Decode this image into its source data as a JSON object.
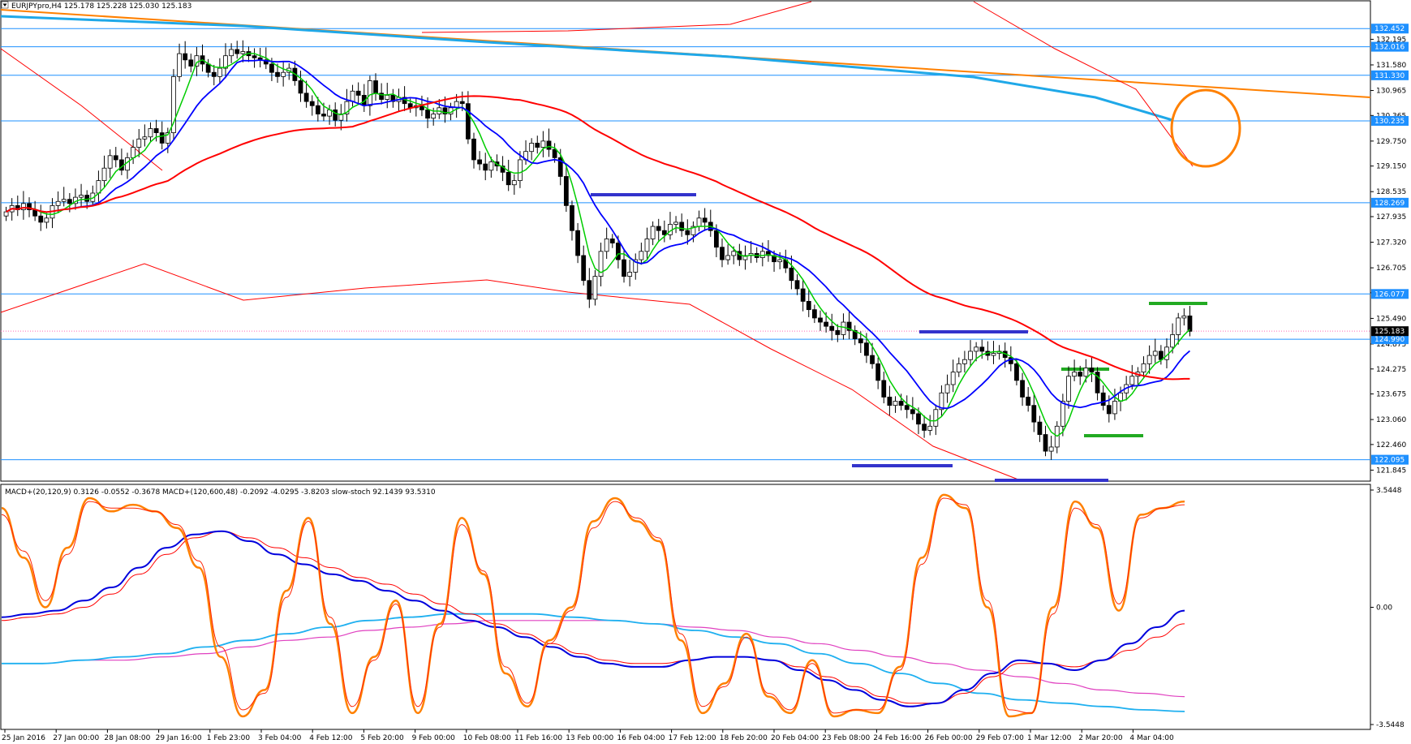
{
  "chart_data": {
    "type": "candlestick",
    "header": {
      "symbol_info": "EURJPYpro,H4  125.178 125.228 125.030 125.183"
    },
    "price_axis": {
      "ylim": [
        121.6,
        133.1
      ],
      "ticks": [
        "132.195",
        "131.580",
        "130.965",
        "130.365",
        "129.750",
        "129.150",
        "128.535",
        "127.935",
        "127.320",
        "126.705",
        "126.105",
        "125.490",
        "124.875",
        "124.275",
        "123.675",
        "123.060",
        "122.460",
        "121.845"
      ]
    },
    "horizontal_levels": [
      {
        "label": "132.452",
        "value": 132.452
      },
      {
        "label": "132.016",
        "value": 132.016
      },
      {
        "label": "131.330",
        "value": 131.33
      },
      {
        "label": "130.235",
        "value": 130.235
      },
      {
        "label": "128.269",
        "value": 128.269
      },
      {
        "label": "126.077",
        "value": 126.077
      },
      {
        "label": "124.990",
        "value": 124.99
      },
      {
        "label": "122.095",
        "value": 122.095
      }
    ],
    "current_price": {
      "label": "125.183",
      "value": 125.183
    },
    "candles": [
      128.05,
      128.2,
      128.1,
      128.25,
      128.1,
      127.95,
      127.8,
      127.9,
      128.2,
      128.3,
      128.35,
      128.25,
      128.4,
      128.45,
      128.3,
      128.5,
      128.8,
      129.1,
      129.4,
      129.3,
      129.05,
      129.35,
      129.6,
      129.8,
      129.85,
      130.05,
      129.95,
      129.7,
      129.95,
      131.3,
      131.85,
      131.7,
      131.55,
      131.8,
      131.6,
      131.4,
      131.3,
      131.5,
      131.8,
      131.95,
      131.85,
      131.9,
      131.8,
      131.75,
      131.7,
      131.6,
      131.4,
      131.3,
      131.4,
      131.5,
      131.2,
      130.9,
      130.7,
      130.6,
      130.4,
      130.35,
      130.5,
      130.25,
      130.4,
      130.7,
      130.95,
      130.85,
      130.6,
      131.2,
      130.9,
      130.75,
      130.85,
      130.7,
      130.8,
      130.65,
      130.55,
      130.6,
      130.5,
      130.3,
      130.4,
      130.55,
      130.4,
      130.55,
      130.7,
      130.65,
      129.8,
      129.3,
      129.2,
      129.05,
      129.25,
      129.15,
      129.0,
      128.7,
      128.8,
      129.3,
      129.5,
      129.7,
      129.6,
      129.75,
      129.55,
      129.35,
      128.9,
      128.2,
      127.6,
      127.0,
      126.4,
      125.95,
      126.5,
      127.1,
      127.4,
      127.3,
      126.9,
      126.5,
      126.6,
      126.9,
      127.1,
      127.4,
      127.7,
      127.6,
      127.5,
      127.75,
      127.8,
      127.6,
      127.5,
      127.7,
      127.9,
      127.8,
      127.6,
      127.2,
      126.9,
      127.0,
      127.1,
      126.9,
      127.0,
      127.05,
      126.95,
      127.1,
      127.0,
      126.85,
      126.9,
      126.7,
      126.4,
      126.2,
      125.9,
      125.7,
      125.5,
      125.4,
      125.3,
      125.2,
      125.1,
      125.4,
      125.2,
      125.0,
      124.9,
      124.6,
      124.4,
      124.0,
      123.6,
      123.4,
      123.5,
      123.4,
      123.3,
      123.2,
      122.95,
      122.8,
      122.9,
      123.3,
      123.7,
      123.9,
      124.2,
      124.4,
      124.5,
      124.7,
      124.8,
      124.7,
      124.6,
      124.65,
      124.7,
      124.55,
      124.4,
      124.0,
      123.6,
      123.4,
      123.0,
      122.7,
      122.3,
      122.4,
      122.9,
      123.5,
      124.1,
      124.2,
      124.1,
      124.3,
      124.2,
      123.7,
      123.4,
      123.2,
      123.5,
      123.7,
      123.9,
      124.1,
      124.2,
      124.4,
      124.6,
      124.7,
      124.5,
      124.8,
      125.1,
      125.5,
      125.55,
      125.18
    ],
    "series": [
      {
        "name": "",
        "color": "#00cc00",
        "values": []
      },
      {
        "name": "",
        "color": "#0000ff",
        "values": []
      },
      {
        "name": "",
        "color": "#ff0000",
        "values": []
      }
    ],
    "x_ticks": [
      "25 Jan 2016",
      "27 Jan 00:00",
      "28 Jan 08:00",
      "29 Jan 16:00",
      "1 Feb 23:00",
      "3 Feb 04:00",
      "4 Feb 12:00",
      "5 Feb 20:00",
      "9 Feb 00:00",
      "10 Feb 08:00",
      "11 Feb 16:00",
      "13 Feb 00:00",
      "16 Feb 04:00",
      "17 Feb 12:00",
      "18 Feb 20:00",
      "20 Feb 04:00",
      "23 Feb 08:00",
      "24 Feb 16:00",
      "26 Feb 00:00",
      "29 Feb 07:00",
      "1 Mar 12:00",
      "2 Mar 20:00",
      "4 Mar 04:00"
    ],
    "indicator": {
      "label": "MACD+(20,120,9) 0.3126 -0.0552 -0.3678  MACD+(120,600,48) -0.2092 -4.0295 -3.8203  slow-stoch 92.1439 93.5310",
      "ticks": [
        "3.5448",
        "0.00",
        "-3.5448"
      ],
      "ylim": [
        -3.5448,
        3.5448
      ],
      "macd_fast_main": [
        -0.3,
        -0.2,
        -0.1,
        0.2,
        0.6,
        1.2,
        1.8,
        2.2,
        2.3,
        2.0,
        1.6,
        1.3,
        1.0,
        0.8,
        0.5,
        0.2,
        -0.1,
        -0.4,
        -0.6,
        -0.9,
        -1.2,
        -1.5,
        -1.7,
        -1.8,
        -1.8,
        -1.6,
        -1.5,
        -1.5,
        -1.6,
        -1.9,
        -2.2,
        -2.5,
        -2.8,
        -3.0,
        -2.9,
        -2.5,
        -2.0,
        -1.6,
        -1.7,
        -1.9,
        -1.6,
        -1.1,
        -0.6,
        -0.1
      ],
      "macd_fast_signal": [
        -0.4,
        -0.3,
        -0.2,
        0.0,
        0.4,
        1.0,
        1.6,
        2.1,
        2.3,
        2.1,
        1.8,
        1.5,
        1.2,
        0.9,
        0.7,
        0.4,
        0.1,
        -0.2,
        -0.5,
        -0.8,
        -1.1,
        -1.4,
        -1.6,
        -1.7,
        -1.7,
        -1.6,
        -1.5,
        -1.5,
        -1.6,
        -1.8,
        -2.1,
        -2.4,
        -2.7,
        -2.9,
        -2.9,
        -2.6,
        -2.1,
        -1.7,
        -1.7,
        -1.8,
        -1.6,
        -1.3,
        -0.9,
        -0.5
      ],
      "macd_slow_main": [
        -1.7,
        -1.7,
        -1.6,
        -1.5,
        -1.4,
        -1.2,
        -1.0,
        -0.8,
        -0.6,
        -0.4,
        -0.3,
        -0.2,
        -0.2,
        -0.2,
        -0.3,
        -0.4,
        -0.5,
        -0.7,
        -0.9,
        -1.1,
        -1.4,
        -1.7,
        -2.0,
        -2.3,
        -2.6,
        -2.8,
        -2.9,
        -3.0,
        -3.1,
        -3.15
      ],
      "macd_slow_signal": [
        -1.7,
        -1.7,
        -1.6,
        -1.6,
        -1.5,
        -1.4,
        -1.2,
        -1.0,
        -0.9,
        -0.7,
        -0.6,
        -0.5,
        -0.4,
        -0.4,
        -0.4,
        -0.4,
        -0.5,
        -0.6,
        -0.7,
        -0.9,
        -1.1,
        -1.3,
        -1.5,
        -1.7,
        -1.9,
        -2.1,
        -2.3,
        -2.5,
        -2.6,
        -2.7
      ],
      "stoch_main": [
        3.0,
        1.5,
        0.0,
        1.8,
        3.3,
        2.9,
        3.1,
        2.9,
        2.4,
        1.2,
        -1.5,
        -3.3,
        -2.5,
        0.5,
        2.7,
        -0.5,
        -3.2,
        -1.5,
        0.2,
        -3.2,
        -0.5,
        2.7,
        1.0,
        -2.0,
        -3.0,
        -1.0,
        0.0,
        2.6,
        3.3,
        2.6,
        2.0,
        -1.0,
        -3.2,
        -2.3,
        -0.8,
        -2.7,
        -3.2,
        -1.6,
        -3.3,
        -3.1,
        -3.2,
        -1.8,
        1.5,
        3.4,
        3.0,
        0.0,
        -3.3,
        -3.2,
        0.0,
        3.2,
        2.4,
        -0.1,
        2.8,
        3.0,
        3.2
      ],
      "stoch_signal": [
        2.8,
        1.7,
        0.2,
        1.6,
        3.2,
        3.0,
        3.0,
        2.9,
        2.5,
        1.4,
        -1.2,
        -3.1,
        -2.6,
        0.3,
        2.6,
        -0.3,
        -3.0,
        -1.6,
        0.1,
        -3.0,
        -0.6,
        2.5,
        1.1,
        -1.8,
        -2.9,
        -1.1,
        -0.1,
        2.4,
        3.2,
        2.7,
        2.1,
        -0.8,
        -3.0,
        -2.4,
        -0.9,
        -2.6,
        -3.1,
        -1.7,
        -3.2,
        -3.1,
        -3.1,
        -1.9,
        1.3,
        3.3,
        3.1,
        0.2,
        -3.1,
        -3.2,
        -0.2,
        3.0,
        2.5,
        0.1,
        2.7,
        3.0,
        3.1
      ]
    }
  }
}
